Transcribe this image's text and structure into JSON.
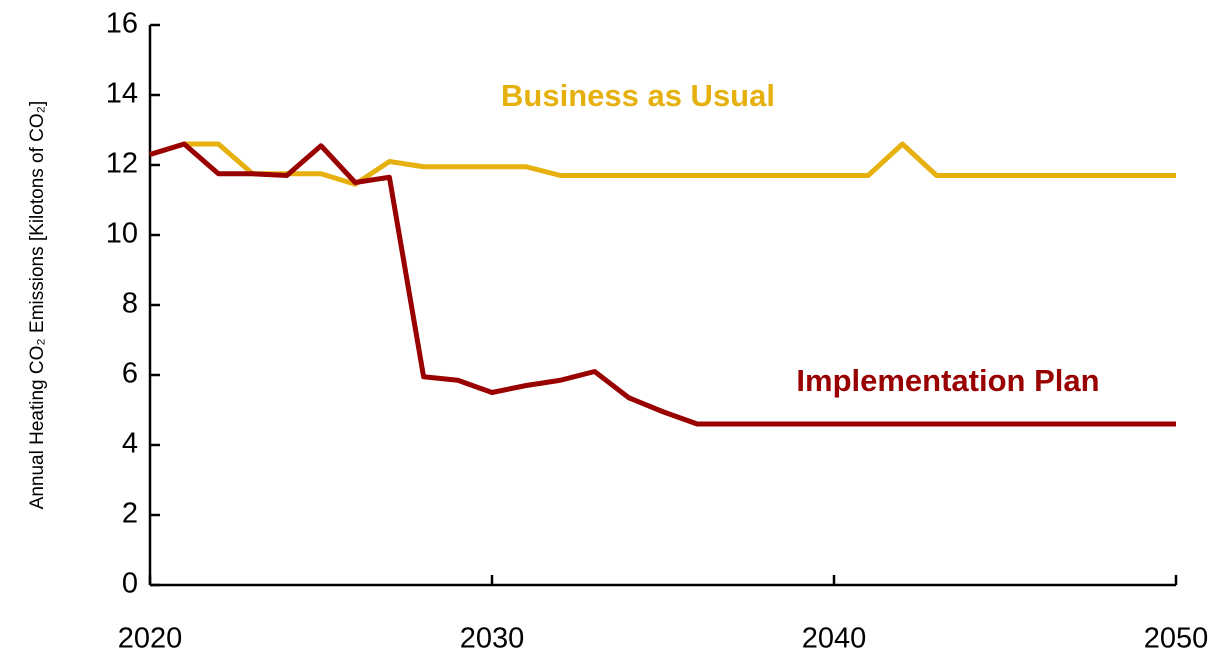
{
  "chart_data": {
    "type": "line",
    "y_label": "Annual Heating CO₂ Emissions  [Kilotons of CO₂]",
    "x": [
      2020,
      2021,
      2022,
      2023,
      2024,
      2025,
      2026,
      2027,
      2028,
      2029,
      2030,
      2031,
      2032,
      2033,
      2034,
      2035,
      2036,
      2037,
      2038,
      2039,
      2040,
      2041,
      2042,
      2043,
      2044,
      2045,
      2046,
      2047,
      2048,
      2049,
      2050
    ],
    "series": [
      {
        "name": "Business as Usual",
        "color": "#e6b00e",
        "values": [
          12.3,
          12.6,
          12.6,
          11.75,
          11.75,
          11.75,
          11.45,
          12.1,
          11.95,
          11.95,
          11.95,
          11.95,
          11.7,
          11.7,
          11.7,
          11.7,
          11.7,
          11.7,
          11.7,
          11.7,
          11.7,
          11.7,
          12.6,
          11.7,
          11.7,
          11.7,
          11.7,
          11.7,
          11.7,
          11.7,
          11.7
        ]
      },
      {
        "name": "Implementation Plan",
        "color": "#990000",
        "values": [
          12.3,
          12.6,
          11.75,
          11.75,
          11.7,
          12.55,
          11.5,
          11.65,
          5.95,
          5.85,
          5.5,
          5.7,
          5.85,
          6.1,
          5.35,
          4.95,
          4.6,
          4.6,
          4.6,
          4.6,
          4.6,
          4.6,
          4.6,
          4.6,
          4.6,
          4.6,
          4.6,
          4.6,
          4.6,
          4.6,
          4.6
        ]
      }
    ],
    "xlim": [
      2020,
      2050
    ],
    "xticks": [
      2020,
      2030,
      2040,
      2050
    ],
    "ylim": [
      0,
      16
    ],
    "yticks": [
      0,
      2,
      4,
      6,
      8,
      10,
      12,
      14,
      16
    ]
  }
}
